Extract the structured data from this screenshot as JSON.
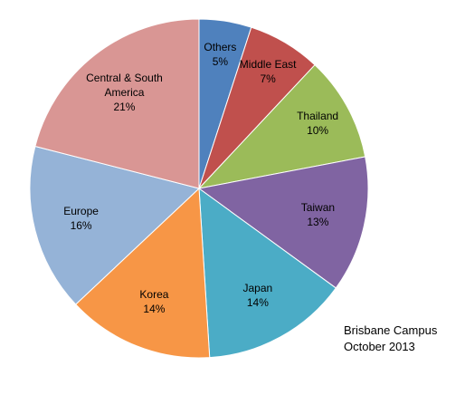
{
  "chart_data": {
    "type": "pie",
    "categories": [
      "Others",
      "Middle East",
      "Thailand",
      "Taiwan",
      "Japan",
      "Korea",
      "Europe",
      "Central & South America"
    ],
    "values": [
      5,
      7,
      10,
      13,
      14,
      14,
      16,
      21
    ],
    "value_labels": [
      "5%",
      "7%",
      "10%",
      "13%",
      "14%",
      "14%",
      "16%",
      "21%"
    ],
    "colors": [
      "#4f81bd",
      "#c0504d",
      "#9bbb59",
      "#8064a2",
      "#4bacc6",
      "#f79646",
      "#95b3d7",
      "#d99694"
    ],
    "annotations": [
      "Brisbane Campus",
      "October 2013"
    ]
  }
}
